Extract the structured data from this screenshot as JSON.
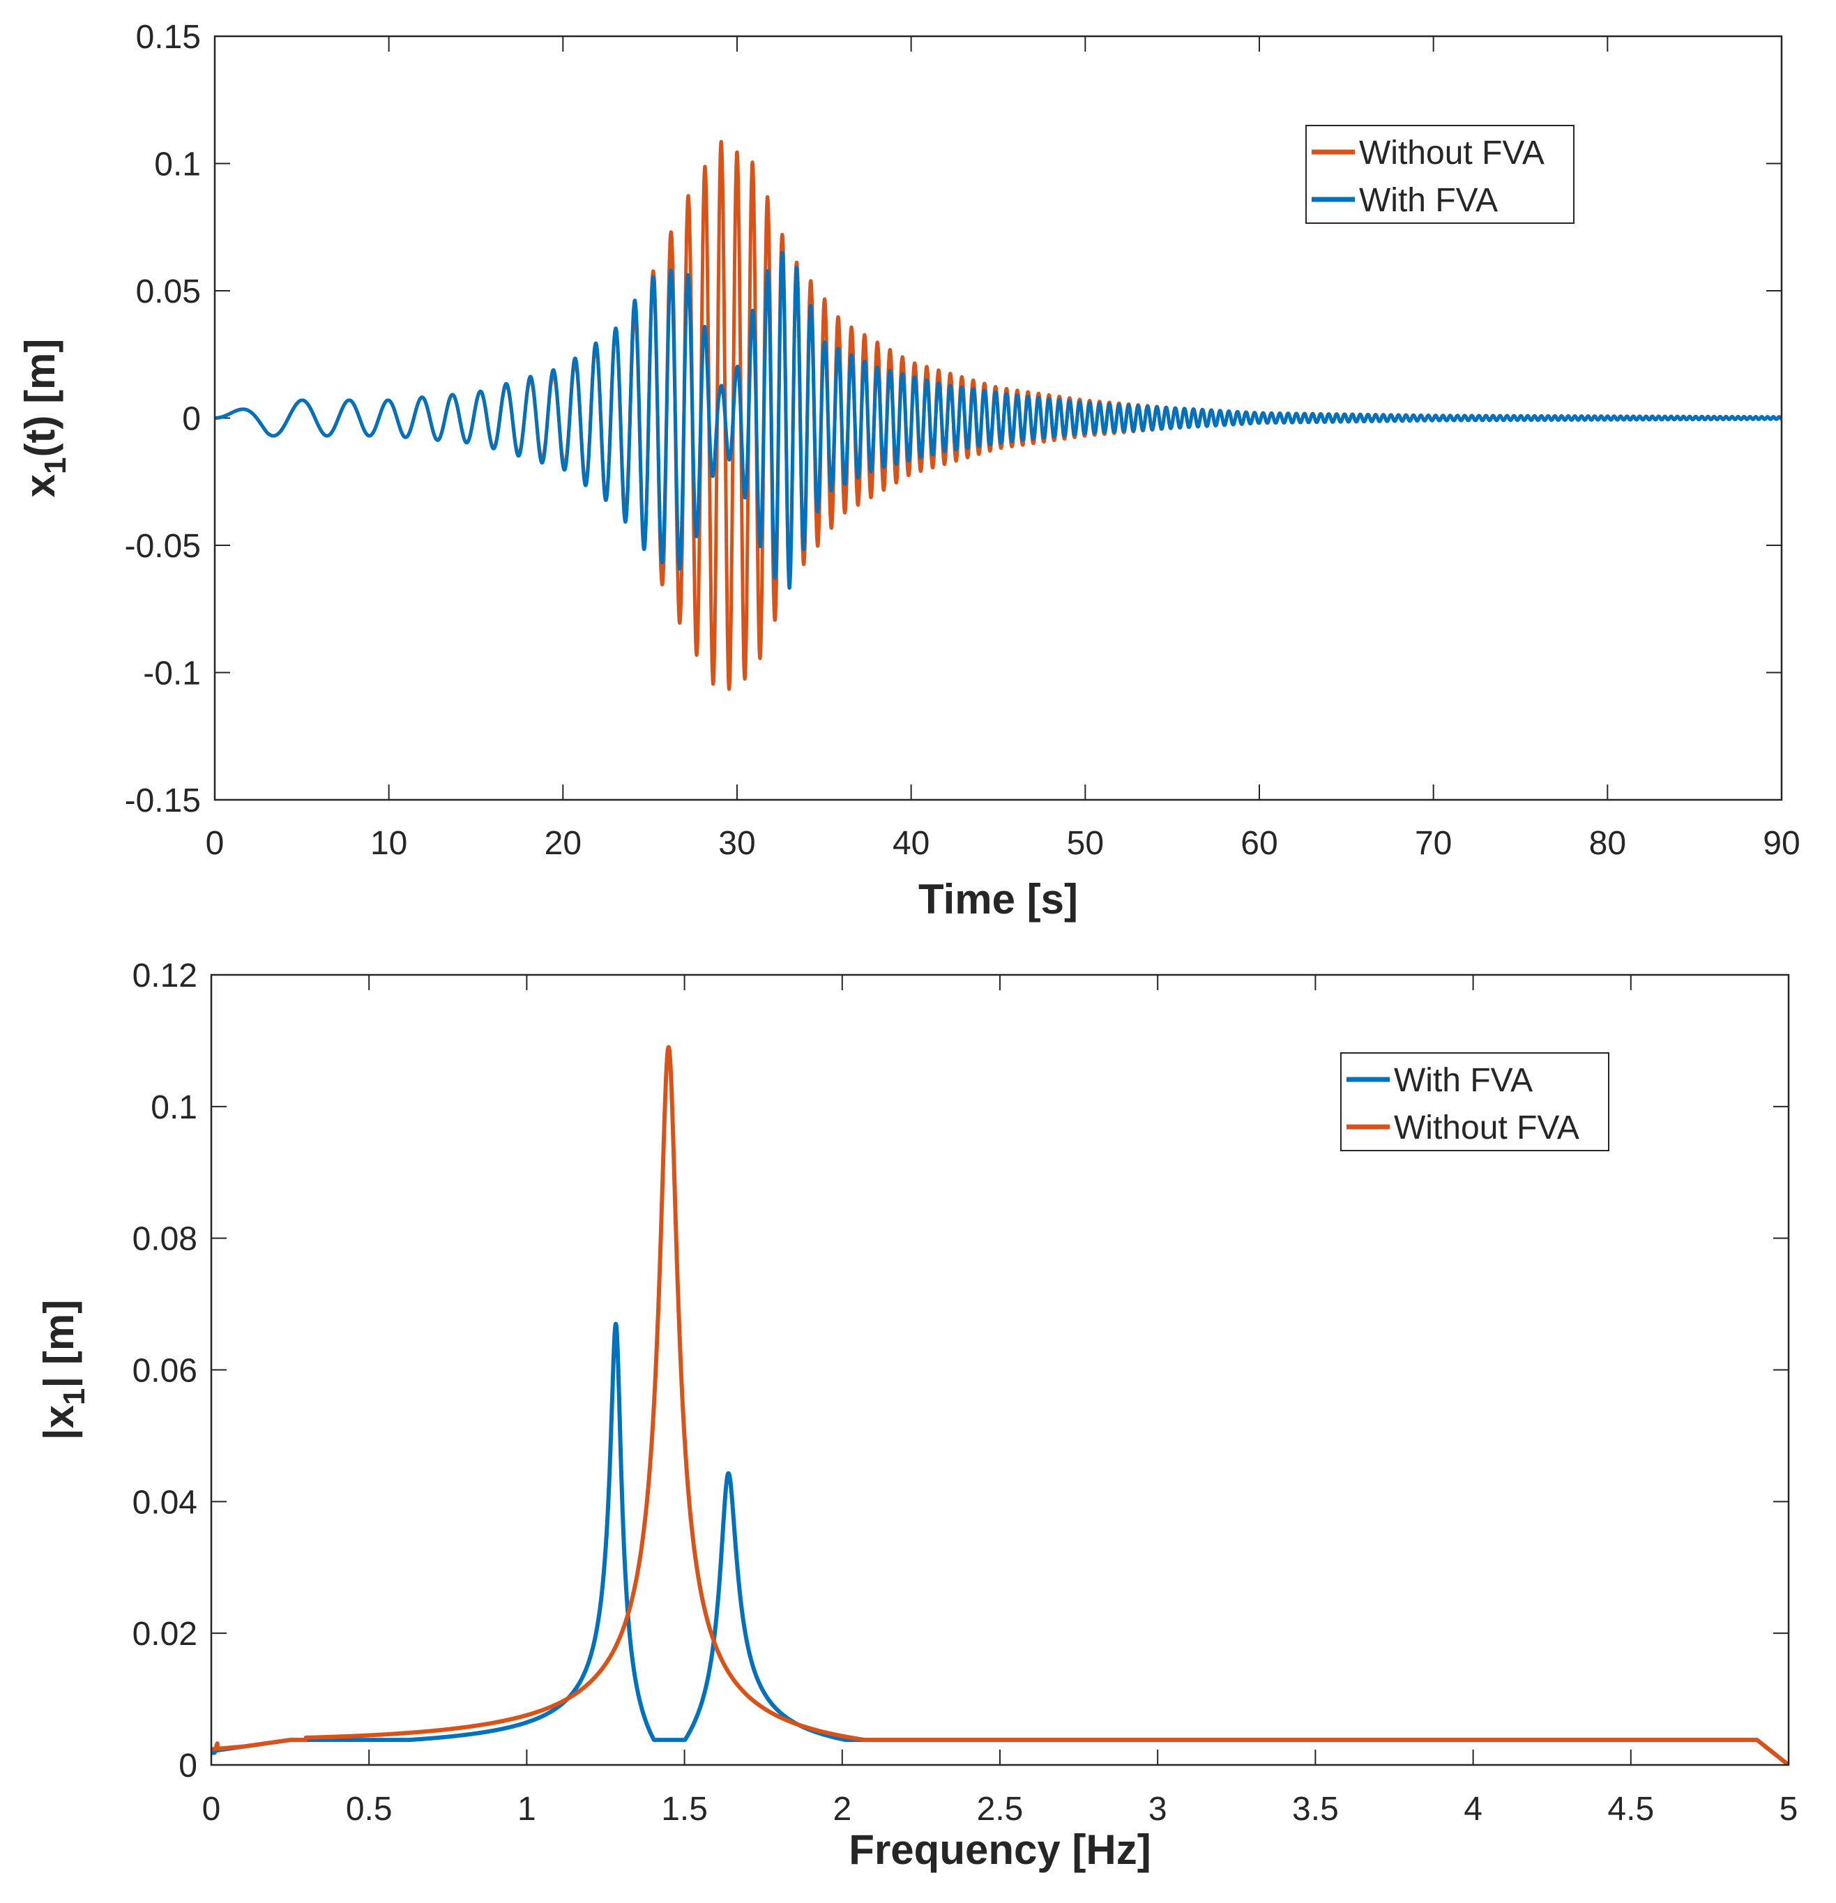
{
  "chart_data": [
    {
      "type": "line",
      "xlabel": "Time [s]",
      "ylabel": "x1(t) [m]",
      "ylabel_parts": {
        "main": "x",
        "sub": "1",
        "rest": "(t) [m]"
      },
      "xlim": [
        0,
        90
      ],
      "ylim": [
        -0.15,
        0.15
      ],
      "xticks": [
        0,
        10,
        20,
        30,
        40,
        50,
        60,
        70,
        80,
        90
      ],
      "xtick_labels": [
        "0",
        "10",
        "20",
        "30",
        "40",
        "50",
        "60",
        "70",
        "80",
        "90"
      ],
      "yticks": [
        -0.15,
        -0.1,
        -0.05,
        0,
        0.05,
        0.1,
        0.15
      ],
      "ytick_labels": [
        "-0.15",
        "-0.1",
        "-0.05",
        "0",
        "0.05",
        "0.1",
        "0.15"
      ],
      "grid": false,
      "legend_position": "top-right",
      "legend": [
        "Without FVA",
        "With FVA"
      ],
      "series": [
        {
          "name": "Without FVA",
          "color": "#D95319",
          "model": "chirp",
          "envelope": {
            "t": [
              0,
              3,
              10,
              15,
              20,
              24,
              27,
              29,
              31,
              33,
              36,
              40,
              45,
              50,
              55,
              60,
              70,
              90
            ],
            "a": [
              0,
              0.007,
              0.007,
              0.01,
              0.018,
              0.04,
              0.085,
              0.109,
              0.1,
              0.065,
              0.038,
              0.022,
              0.012,
              0.007,
              0.004,
              0.002,
              0.001,
              0.0005
            ]
          },
          "frequency": {
            "t": [
              0,
              90
            ],
            "f": [
              0.17,
              3.0
            ]
          }
        },
        {
          "name": "With FVA",
          "color": "#0072BD",
          "model": "chirp",
          "envelope": {
            "t": [
              0,
              3,
              10,
              15,
              20,
              23,
              25,
              27,
              28,
              29,
              30,
              31,
              32,
              33,
              35,
              38,
              42,
              46,
              50,
              55,
              60,
              70,
              90
            ],
            "a": [
              0,
              0.007,
              0.007,
              0.01,
              0.02,
              0.035,
              0.055,
              0.06,
              0.04,
              0.012,
              0.02,
              0.045,
              0.062,
              0.067,
              0.03,
              0.02,
              0.013,
              0.009,
              0.006,
              0.004,
              0.002,
              0.001,
              0.0004
            ]
          },
          "frequency": {
            "t": [
              0,
              90
            ],
            "f": [
              0.17,
              3.0
            ]
          }
        }
      ]
    },
    {
      "type": "line",
      "xlabel": "Frequency [Hz]",
      "ylabel": "|x1| [m]",
      "ylabel_parts": {
        "main": "|x",
        "sub": "1",
        "rest": "| [m]"
      },
      "xlim": [
        0,
        5
      ],
      "ylim": [
        0,
        0.12
      ],
      "xticks": [
        0,
        0.5,
        1,
        1.5,
        2,
        2.5,
        3,
        3.5,
        4,
        4.5,
        5
      ],
      "xtick_labels": [
        "0",
        "0.5",
        "1",
        "1.5",
        "2",
        "2.5",
        "3",
        "3.5",
        "4",
        "4.5",
        "5"
      ],
      "yticks": [
        0,
        0.02,
        0.04,
        0.06,
        0.08,
        0.1,
        0.12
      ],
      "ytick_labels": [
        "0",
        "0.02",
        "0.04",
        "0.06",
        "0.08",
        "0.1",
        "0.12"
      ],
      "grid": false,
      "legend_position": "top-right",
      "legend": [
        "With FVA",
        "Without FVA"
      ],
      "series": [
        {
          "name": "With FVA",
          "color": "#0072BD",
          "peaks": [
            {
              "f": 1.3,
              "amplitude": 0.067
            },
            {
              "f": 1.45,
              "amplitude": 0.0035,
              "type": "antiresonance"
            },
            {
              "f": 1.62,
              "amplitude": 0.043
            }
          ]
        },
        {
          "name": "Without FVA",
          "color": "#D95319",
          "peaks": [
            {
              "f": 1.45,
              "amplitude": 0.109
            }
          ]
        }
      ]
    }
  ]
}
